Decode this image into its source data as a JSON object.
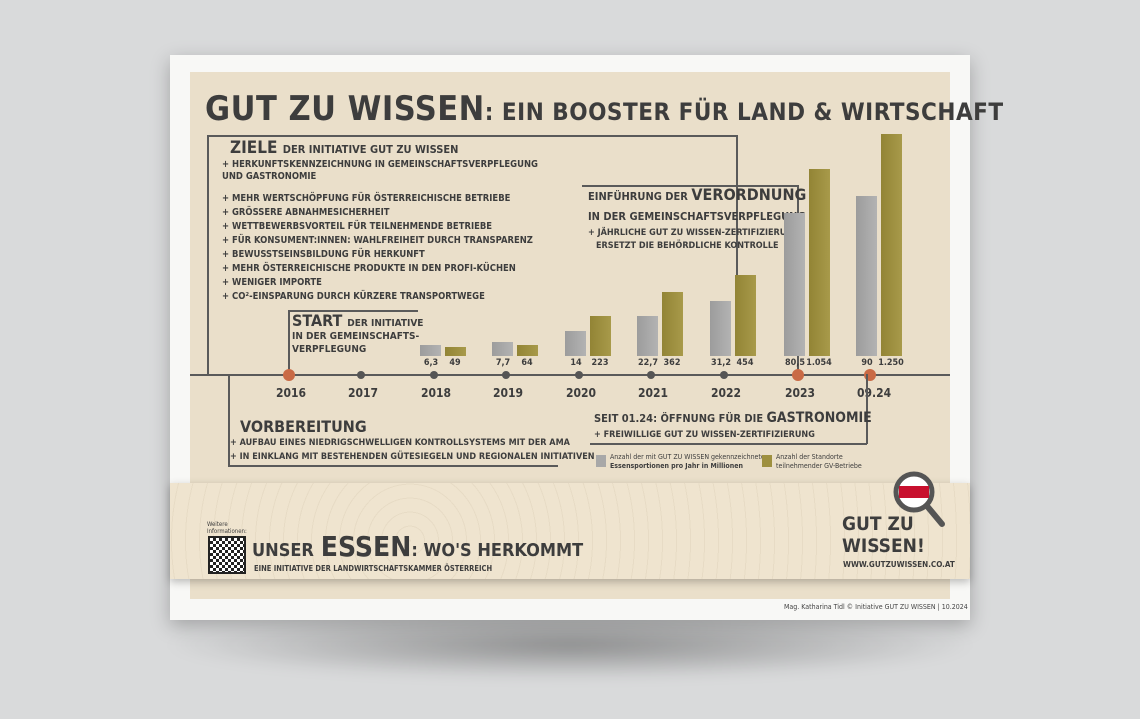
{
  "title": {
    "part1": "GUT ZU WISSEN",
    "part2": ": EIN BOOSTER FÜR LAND & WIRTSCHAFT"
  },
  "goals": {
    "head": "ZIELE",
    "head_sub": "DER INITIATIVE GUT ZU WISSEN",
    "items": [
      "HERKUNFTSKENNZEICHNUNG IN GEMEINSCHAFTSVERPFLEGUNG",
      "UND GASTRONOMIE",
      "MEHR WERTSCHÖPFUNG FÜR ÖSTERREICHISCHE BETRIEBE",
      "GRÖSSERE ABNAHMESICHERHEIT",
      "WETTBEWERBSVORTEIL FÜR TEILNEHMENDE BETRIEBE",
      "FÜR KONSUMENT:INNEN: WAHLFREIHEIT DURCH TRANSPARENZ",
      "BEWUSSTSEINSBILDUNG FÜR HERKUNFT",
      "MEHR ÖSTERREICHISCHE PRODUKTE IN DEN PROFI-KÜCHEN",
      "WENIGER IMPORTE",
      "CO²-EINSPARUNG DURCH KÜRZERE TRANSPORTWEGE"
    ]
  },
  "start": {
    "head": "START",
    "head_sub": "DER INITIATIVE",
    "line2": "IN DER GEMEINSCHAFTS-",
    "line3": "VERPFLEGUNG"
  },
  "vorbereitung": {
    "head": "VORBEREITUNG",
    "items": [
      "AUFBAU EINES NIEDRIGSCHWELLIGEN KONTROLLSYSTEMS MIT DER AMA",
      "IN EINKLANG MIT BESTEHENDEN GÜTESIEGELN UND REGIONALEN INITIATIVEN"
    ]
  },
  "einfuehrung": {
    "pre": "EINFÜHRUNG DER",
    "head": "VERORDNUNG",
    "line2": "IN DER GEMEINSCHAFTSVERPFLEGUNG",
    "item1": "JÄHRLICHE GUT ZU WISSEN-ZERTIFIZIERUNG",
    "item2": "ERSETZT DIE BEHÖRDLICHE KONTROLLE"
  },
  "gastro": {
    "pre": "SEIT 01.24: ÖFFNUNG FÜR DIE",
    "head": "GASTRONOMIE",
    "item": "FREIWILLIGE GUT ZU WISSEN-ZERTIFIZIERUNG"
  },
  "legend": {
    "grey_line1": "Anzahl der mit GUT ZU WISSEN gekennzeichneten",
    "grey_line2": "Essensportionen pro Jahr in Millionen",
    "olive_line1": "Anzahl der Standorte",
    "olive_line2": "teilnehmender GV-Betriebe"
  },
  "colors": {
    "grey": "#a8a8a8",
    "olive": "#9e903f",
    "accent": "#c96a45"
  },
  "chart_data": {
    "type": "bar",
    "categories": [
      "2016",
      "2017",
      "2018",
      "2019",
      "2020",
      "2021",
      "2022",
      "2023",
      "09.24"
    ],
    "series": [
      {
        "name": "Anzahl der mit GUT ZU WISSEN gekennzeichneten Essensportionen pro Jahr in Millionen",
        "values": [
          null,
          null,
          6.3,
          7.7,
          14,
          22.7,
          31.2,
          80.5,
          90
        ],
        "labels": [
          "",
          "",
          "6,3",
          "7,7",
          "14",
          "22,7",
          "31,2",
          "80,5",
          "90"
        ]
      },
      {
        "name": "Anzahl der Standorte teilnehmender GV-Betriebe",
        "values": [
          null,
          null,
          49,
          64,
          223,
          362,
          454,
          1054,
          1250
        ],
        "labels": [
          "",
          "",
          "49",
          "64",
          "223",
          "362",
          "454",
          "1.054",
          "1.250"
        ]
      }
    ]
  },
  "footer": {
    "unser": "UNSER",
    "essen": "ESSEN",
    "rest": ": WO'S HERKOMMT",
    "sub": "EINE INITIATIVE DER LANDWIRTSCHAFTSKAMMER ÖSTERREICH",
    "qr_label1": "Weitere",
    "qr_label2": "Informationen:",
    "logo1": "GUT ZU",
    "logo2": "WISSEN!",
    "url": "WWW.GUTZUWISSEN.CO.AT"
  },
  "credit": "Mag. Katharina Tidl © Initiative GUT ZU WISSEN  |  10.2024"
}
